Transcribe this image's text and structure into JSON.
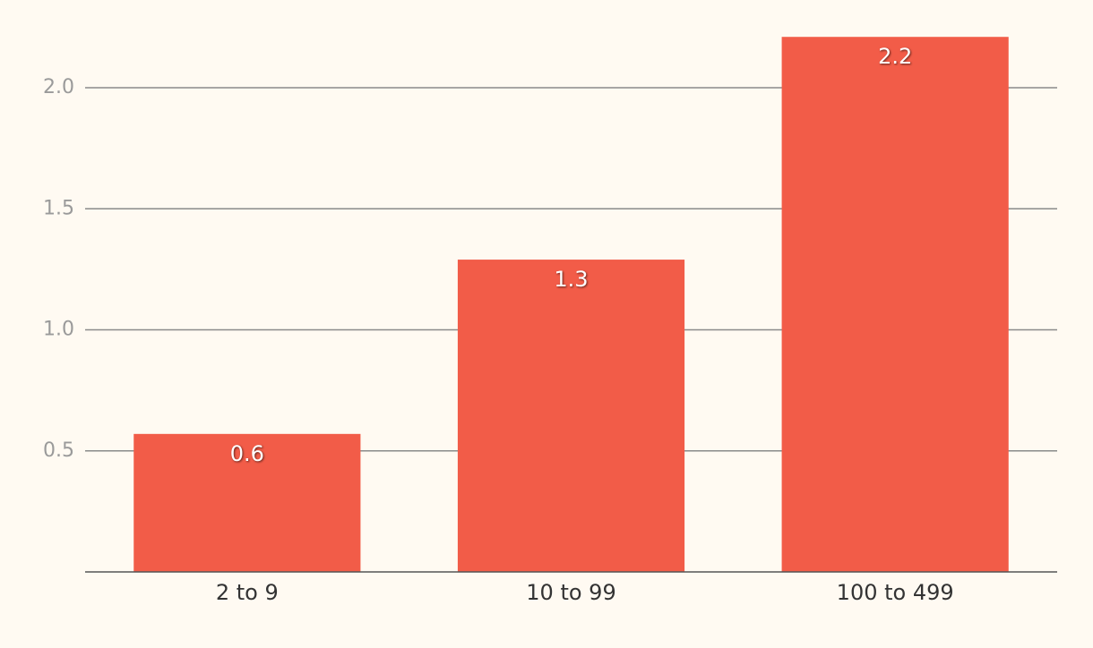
{
  "chart_data": {
    "type": "bar",
    "categories": [
      "2 to 9",
      "10 to 99",
      "100 to 499"
    ],
    "values": [
      0.57,
      1.29,
      2.21
    ],
    "value_labels": [
      "0.6",
      "1.3",
      "2.2"
    ],
    "color": "#f25c48",
    "ylim": [
      0,
      2.25
    ],
    "yticks": [
      0.5,
      {
        "value": 1.0,
        "label": "1.0"
      },
      1.5,
      {
        "value": 2.0,
        "label": "2.0"
      }
    ],
    "grid": true
  }
}
